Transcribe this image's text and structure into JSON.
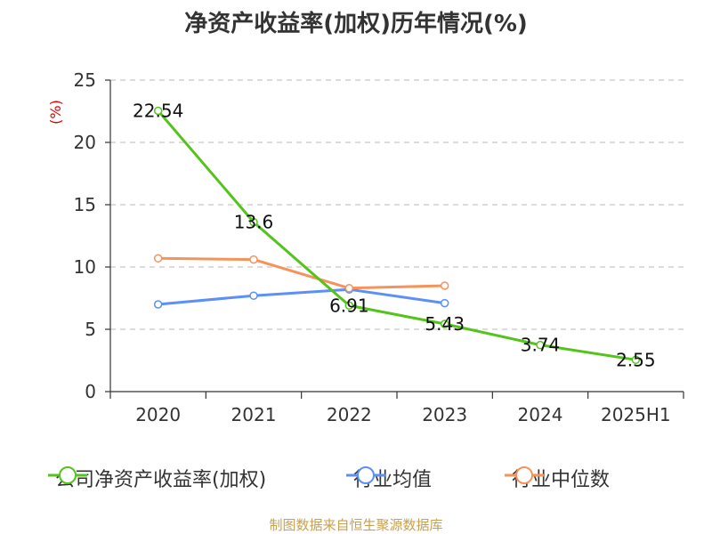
{
  "title": "净资产收益率(加权)历年情况(%)",
  "source": "制图数据来自恒生聚源数据库",
  "chart_data": {
    "type": "line",
    "ylabel": "(%)",
    "ylim": [
      0,
      25
    ],
    "yticks": [
      0,
      5,
      10,
      15,
      20,
      25
    ],
    "grid": true,
    "legend_position": "bottom",
    "categories": [
      "2020",
      "2021",
      "2022",
      "2023",
      "2024",
      "2025H1"
    ],
    "series": [
      {
        "name": "公司净资产收益率(加权)",
        "color": "#52c41a",
        "values": [
          22.54,
          13.6,
          6.91,
          5.43,
          3.74,
          2.55
        ],
        "labels": [
          "22.54",
          "13.6",
          "6.91",
          "5.43",
          "3.74",
          "2.55"
        ]
      },
      {
        "name": "行业均值",
        "color": "#5b8ff9",
        "values": [
          7.0,
          7.7,
          8.2,
          7.1,
          null,
          null
        ]
      },
      {
        "name": "行业中位数",
        "color": "#f6925a",
        "values": [
          10.7,
          10.6,
          8.3,
          8.5,
          null,
          null
        ]
      }
    ]
  }
}
